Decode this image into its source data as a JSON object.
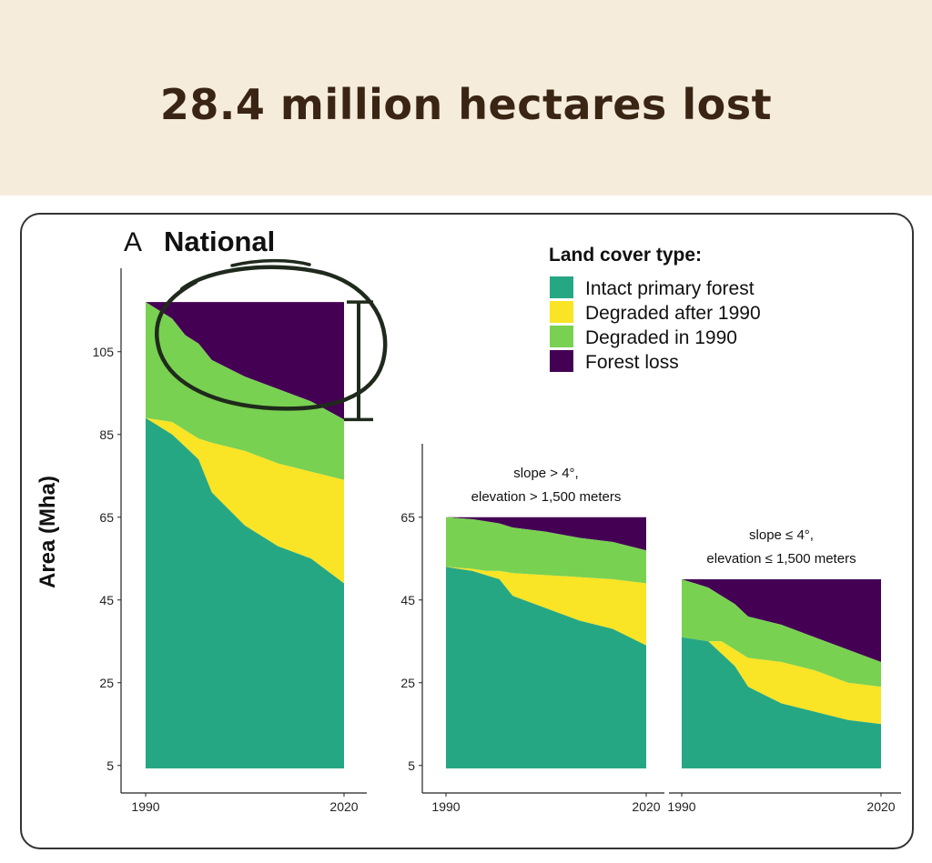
{
  "headline": "28.4 million hectares lost",
  "chart_data": {
    "type": "area",
    "panel_label": "A",
    "panel_title": "National",
    "ylabel": "Area (Mha)",
    "yticks": [
      5,
      25,
      45,
      65,
      85,
      105
    ],
    "xticks": [
      1990,
      2020
    ],
    "legend": {
      "title": "Land cover type:",
      "placement": "top-right",
      "entries": [
        {
          "key": "intact",
          "label": "Intact primary forest",
          "color": "#26a783"
        },
        {
          "key": "degraded_after",
          "label": "Degraded after 1990",
          "color": "#f9e425"
        },
        {
          "key": "degraded_in",
          "label": "Degraded in 1990",
          "color": "#79d151"
        },
        {
          "key": "loss",
          "label": "Forest loss",
          "color": "#440154"
        }
      ]
    },
    "x": [
      1990,
      1994,
      1996,
      1998,
      2000,
      2005,
      2010,
      2015,
      2020
    ],
    "panels": [
      {
        "id": "national",
        "title": "",
        "ylim": [
          0,
          125
        ],
        "total": 117,
        "series": {
          "intact": [
            89,
            85,
            82,
            79,
            71,
            63,
            58,
            55,
            49
          ],
          "degraded_after_top": [
            89,
            88,
            86,
            84,
            83,
            81,
            78,
            76,
            74
          ],
          "degraded_in_top": [
            117,
            113,
            109,
            107,
            103,
            99,
            96,
            93,
            88.6
          ]
        }
      },
      {
        "id": "steep_high",
        "title": "slope > 4°,\nelevation > 1,500 meters",
        "ylim": [
          0,
          80
        ],
        "total": 65,
        "series": {
          "intact": [
            53,
            52,
            51,
            50,
            46,
            43,
            40,
            38,
            34
          ],
          "degraded_after_top": [
            53,
            52.5,
            52,
            52,
            51.5,
            51,
            50.5,
            50,
            49
          ],
          "degraded_in_top": [
            65,
            64.5,
            64,
            63.5,
            62.5,
            61.5,
            60,
            59,
            57
          ]
        }
      },
      {
        "id": "flat_low",
        "title": "slope ≤ 4°,\nelevation ≤ 1,500 meters",
        "ylim": [
          0,
          80
        ],
        "total": 50,
        "series": {
          "intact": [
            36,
            35,
            32,
            29,
            24,
            20,
            18,
            16,
            15
          ],
          "degraded_after_top": [
            36,
            35,
            35,
            33,
            31,
            30,
            28,
            25,
            24
          ],
          "degraded_in_top": [
            50,
            48,
            46,
            44,
            41,
            39,
            36,
            33,
            30
          ]
        }
      }
    ],
    "bracket": {
      "from": 88.6,
      "to": 117
    }
  }
}
